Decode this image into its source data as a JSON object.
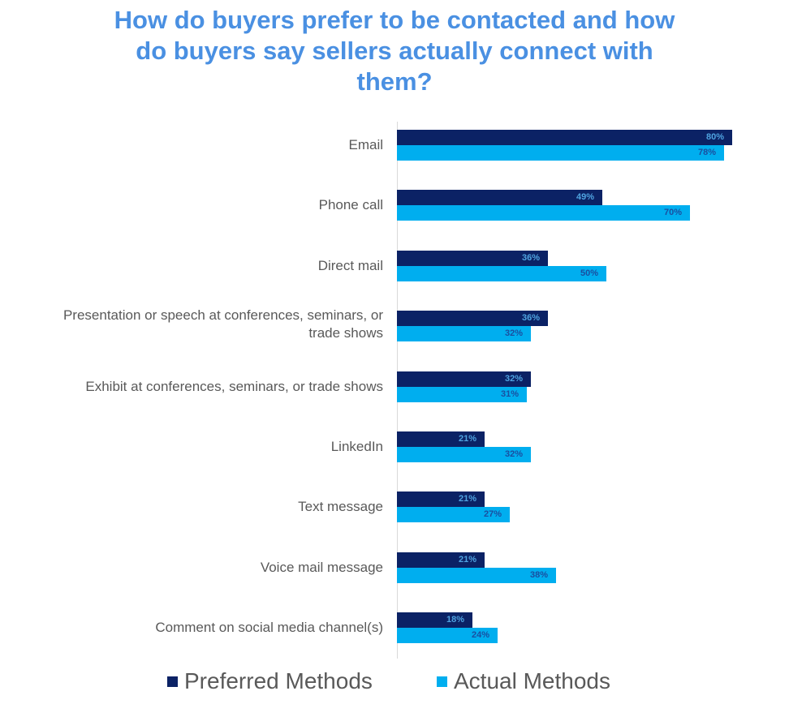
{
  "title_lines": [
    "How do buyers prefer to be contacted and how",
    "do buyers say sellers actually connect with",
    "them?"
  ],
  "colors": {
    "title": "#4a90e2",
    "preferred": "#0b2265",
    "actual": "#00aeef",
    "preferred_label": "#4fa3e0",
    "actual_label": "#1a4fa0",
    "category_text": "#595959"
  },
  "legend": {
    "preferred": "Preferred Methods",
    "actual": "Actual Methods"
  },
  "chart_data": {
    "type": "bar",
    "orientation": "horizontal",
    "title": "How do buyers prefer to be contacted and how do buyers say sellers actually connect with them?",
    "categories": [
      "Email",
      "Phone call",
      "Direct mail",
      "Presentation or speech at conferences, seminars, or trade shows",
      "Exhibit at conferences, seminars, or trade shows",
      "LinkedIn",
      "Text message",
      "Voice mail message",
      "Comment on social media channel(s)"
    ],
    "category_lines": [
      [
        "Email"
      ],
      [
        "Phone call"
      ],
      [
        "Direct mail"
      ],
      [
        "Presentation or speech at conferences, seminars, or",
        "trade shows"
      ],
      [
        "Exhibit at conferences, seminars, or trade shows"
      ],
      [
        "LinkedIn"
      ],
      [
        "Text message"
      ],
      [
        "Voice mail message"
      ],
      [
        "Comment on social media channel(s)"
      ]
    ],
    "series": [
      {
        "name": "Preferred Methods",
        "values": [
          80,
          49,
          36,
          36,
          32,
          21,
          21,
          21,
          18
        ],
        "labels": [
          "80%",
          "49%",
          "36%",
          "36%",
          "32%",
          "21%",
          "21%",
          "21%",
          "18%"
        ]
      },
      {
        "name": "Actual Methods",
        "values": [
          78,
          70,
          50,
          32,
          31,
          32,
          27,
          38,
          24
        ],
        "labels": [
          "78%",
          "70%",
          "50%",
          "32%",
          "31%",
          "32%",
          "27%",
          "38%",
          "24%"
        ]
      }
    ],
    "xlabel": "",
    "ylabel": "",
    "value_format": "percent",
    "grid": false,
    "legend_position": "bottom"
  }
}
